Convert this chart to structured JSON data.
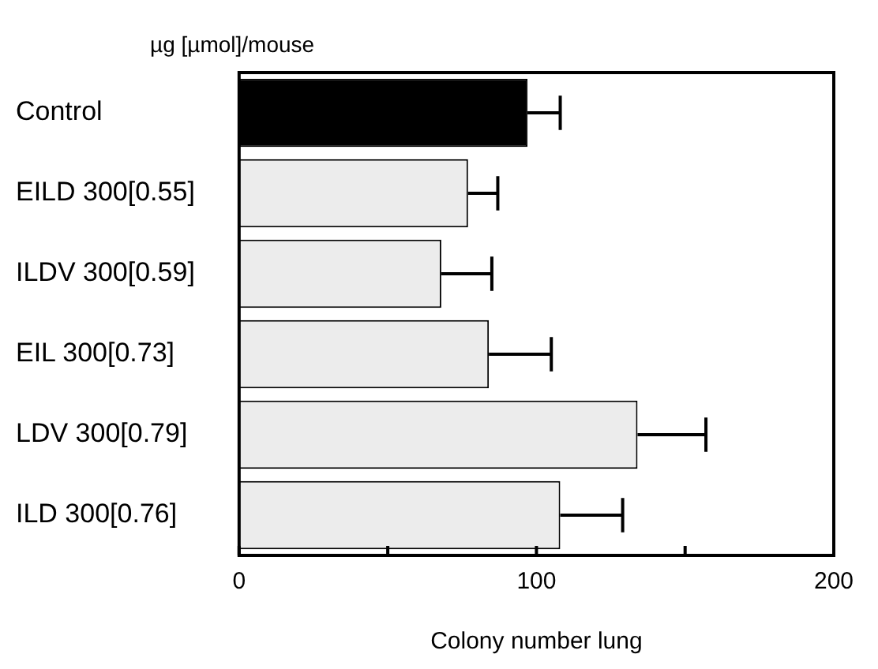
{
  "chart_data": {
    "type": "bar",
    "orientation": "horizontal",
    "ylabel": "µg [µmol]/mouse",
    "xlabel": "Colony number lung",
    "categories": [
      "Control",
      "EILD 300[0.55]",
      "ILDV 300[0.59]",
      "EIL 300[0.73]",
      "LDV 300[0.79]",
      "ILD 300[0.76]"
    ],
    "values": [
      97,
      77,
      68,
      84,
      134,
      108
    ],
    "errors": [
      [
        97,
        108
      ],
      [
        77,
        87
      ],
      [
        68,
        85
      ],
      [
        84,
        105
      ],
      [
        134,
        157
      ],
      [
        108,
        129
      ]
    ],
    "colors": [
      "#000000",
      "#ececec",
      "#ececec",
      "#ececec",
      "#ececec",
      "#ececec"
    ],
    "xlim": [
      0,
      200
    ],
    "xticks": [
      0,
      {
        "value": 50,
        "label": null
      },
      100,
      {
        "value": 150,
        "label": null
      },
      200
    ]
  }
}
